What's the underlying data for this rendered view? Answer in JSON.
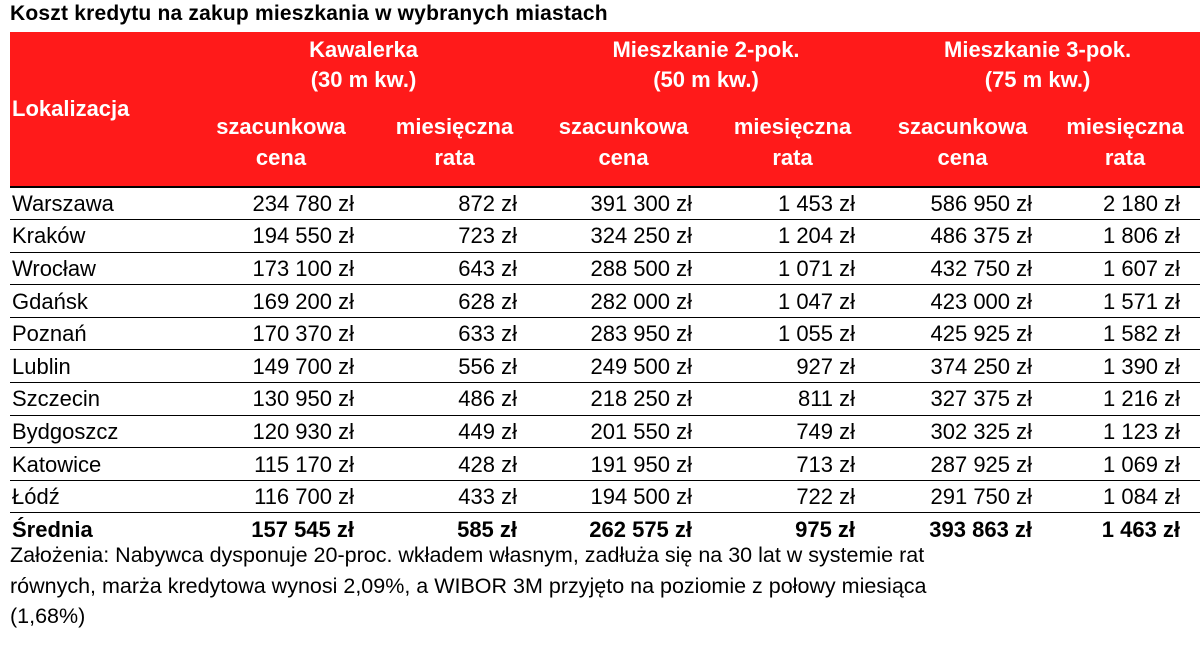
{
  "title": "Koszt kredytu na zakup mieszkania w wybranych miastach",
  "chart_data": {
    "type": "table",
    "header_color": "#ff1a1a",
    "location_header": "Lokalizacja",
    "groups": [
      {
        "line1": "Kawalerka",
        "line2": "(30 m kw.)"
      },
      {
        "line1": "Mieszkanie 2-pok.",
        "line2": "(50 m kw.)"
      },
      {
        "line1": "Mieszkanie 3-pok.",
        "line2": "(75 m kw.)"
      }
    ],
    "subheaders": [
      {
        "line1": "szacunkowa",
        "line2": "cena"
      },
      {
        "line1": "miesięczna",
        "line2": "rata"
      }
    ],
    "rows": [
      {
        "city": "Warszawa",
        "values": [
          "234 780 zł",
          "872 zł",
          "391 300 zł",
          "1 453 zł",
          "586 950 zł",
          "2 180 zł"
        ]
      },
      {
        "city": "Kraków",
        "values": [
          "194 550 zł",
          "723 zł",
          "324 250 zł",
          "1 204 zł",
          "486 375 zł",
          "1 806 zł"
        ]
      },
      {
        "city": "Wrocław",
        "values": [
          "173 100 zł",
          "643 zł",
          "288 500 zł",
          "1 071 zł",
          "432 750 zł",
          "1 607 zł"
        ]
      },
      {
        "city": "Gdańsk",
        "values": [
          "169 200 zł",
          "628 zł",
          "282 000 zł",
          "1 047 zł",
          "423 000 zł",
          "1 571 zł"
        ]
      },
      {
        "city": "Poznań",
        "values": [
          "170 370 zł",
          "633 zł",
          "283 950 zł",
          "1 055 zł",
          "425 925 zł",
          "1 582 zł"
        ]
      },
      {
        "city": "Lublin",
        "values": [
          "149 700 zł",
          "556 zł",
          "249 500 zł",
          "927 zł",
          "374 250 zł",
          "1 390 zł"
        ]
      },
      {
        "city": "Szczecin",
        "values": [
          "130 950 zł",
          "486 zł",
          "218 250 zł",
          "811 zł",
          "327 375 zł",
          "1 216 zł"
        ]
      },
      {
        "city": "Bydgoszcz",
        "values": [
          "120 930 zł",
          "449 zł",
          "201 550 zł",
          "749 zł",
          "302 325 zł",
          "1 123 zł"
        ]
      },
      {
        "city": "Katowice",
        "values": [
          "115 170 zł",
          "428 zł",
          "191 950 zł",
          "713 zł",
          "287 925 zł",
          "1 069 zł"
        ]
      },
      {
        "city": "Łódź",
        "values": [
          "116 700 zł",
          "433 zł",
          "194 500 zł",
          "722 zł",
          "291 750 zł",
          "1 084 zł"
        ]
      }
    ],
    "average": {
      "city": "Średnia",
      "values": [
        "157 545 zł",
        "585 zł",
        "262 575 zł",
        "975 zł",
        "393 863 zł",
        "1 463 zł"
      ]
    }
  },
  "note": {
    "line1": "Założenia: Nabywca dysponuje 20-proc. wkładem własnym, zadłuża się na 30 lat w systemie rat",
    "line2": "równych, marża kredytowa wynosi 2,09%, a WIBOR 3M przyjęto na poziomie z połowy miesiąca",
    "line3": "(1,68%)"
  }
}
